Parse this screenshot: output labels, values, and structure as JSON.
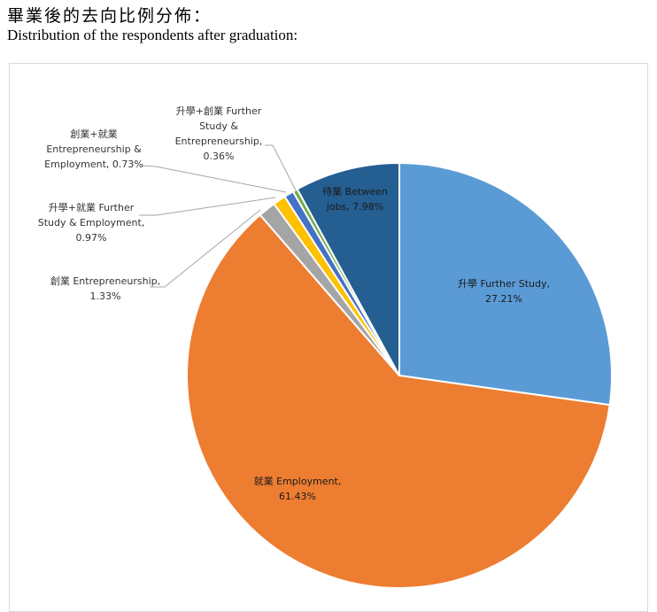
{
  "heading": {
    "title_zh": "畢業後的去向比例分佈：",
    "title_en": "Distribution of the respondents after graduation:"
  },
  "chart_data": {
    "type": "pie",
    "start_angle_deg": 0,
    "direction": "clockwise",
    "slices": [
      {
        "label_lines": [
          "升學 Further Study,",
          "27.21%"
        ],
        "value": 27.21,
        "color": "#5B9BD5"
      },
      {
        "label_lines": [
          "就業 Employment,",
          "61.43%"
        ],
        "value": 61.43,
        "color": "#ED7D31"
      },
      {
        "label_lines": [
          "創業 Entrepreneurship,",
          "1.33%"
        ],
        "value": 1.33,
        "color": "#A5A5A5"
      },
      {
        "label_lines": [
          "升學+就業 Further",
          "Study & Employment,",
          "0.97%"
        ],
        "value": 0.97,
        "color": "#FFC000"
      },
      {
        "label_lines": [
          "創業+就業",
          "Entrepreneurship &",
          "Employment, 0.73%"
        ],
        "value": 0.73,
        "color": "#4472C4"
      },
      {
        "label_lines": [
          "升學+創業 Further",
          "Study &",
          "Entrepreneurship,",
          "0.36%"
        ],
        "value": 0.36,
        "color": "#70AD47"
      },
      {
        "label_lines": [
          "待業 Between",
          "jobs, 7.98%"
        ],
        "value": 7.98,
        "color": "#255E91"
      }
    ]
  }
}
